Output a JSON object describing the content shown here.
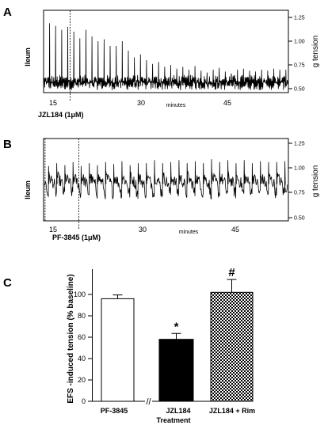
{
  "panels": {
    "A": {
      "letter": "A",
      "ylabel": "Ileum",
      "right_label": "g tension",
      "y_ticks": [
        "1.25",
        "1.00",
        "0.75",
        "0.50"
      ],
      "x_ticks": [
        "15",
        "30",
        "45"
      ],
      "x_label": "minutes",
      "drug_label": "JZL184 (1μM)"
    },
    "B": {
      "letter": "B",
      "ylabel": "Ileum",
      "right_label": "g tension",
      "y_ticks": [
        "1.25",
        "1.00",
        "0.75",
        "0.50"
      ],
      "x_ticks": [
        "15",
        "30",
        "45"
      ],
      "x_label": "minutes",
      "drug_label": "PF-3845 (1μM)"
    }
  },
  "chart_data": [
    {
      "type": "line",
      "panel": "A",
      "xlabel": "minutes",
      "ylabel": "g tension",
      "x_ticks": [
        15,
        30,
        45
      ],
      "y_ticks": [
        0.5,
        0.75,
        1.0,
        1.25
      ],
      "xlim": [
        8,
        57
      ],
      "ylim": [
        0.44,
        1.3
      ],
      "baseline": 0.56,
      "event": {
        "label": "JZL184 (1μM)",
        "x": 18
      },
      "peaks_before": [
        1.19,
        1.16,
        1.12,
        1.15,
        1.1,
        1.03,
        1.12,
        1.05,
        1.0,
        1.02,
        0.95
      ],
      "peaks_after": [
        0.95,
        1.0,
        0.9,
        0.83,
        0.86,
        0.8,
        0.76,
        0.78,
        0.73,
        0.75,
        0.71,
        0.73,
        0.7,
        0.74,
        0.69,
        0.67,
        0.7,
        0.72,
        0.68,
        0.66,
        0.7,
        0.71,
        0.69,
        0.68,
        0.7,
        0.69,
        0.71,
        0.7,
        0.7
      ]
    },
    {
      "type": "line",
      "panel": "B",
      "xlabel": "minutes",
      "ylabel": "g tension",
      "x_ticks": [
        15,
        30,
        45
      ],
      "y_ticks": [
        0.5,
        0.75,
        1.0,
        1.25
      ],
      "xlim": [
        8,
        57
      ],
      "ylim": [
        0.5,
        1.3
      ],
      "baseline": 0.8,
      "event": {
        "label": "PF-3845 (1μM)",
        "x": 19.5
      },
      "start_marker_x": 8.3,
      "peaks": [
        1.02,
        1.05,
        1.03,
        1.06,
        1.02,
        1.05,
        1.03,
        1.06,
        1.04,
        1.07,
        1.03,
        1.05,
        1.05,
        1.08,
        1.05,
        1.06,
        1.08,
        1.05,
        1.07,
        1.05,
        1.09,
        1.06,
        1.08,
        1.05,
        1.08,
        1.05,
        1.07,
        1.06,
        1.06,
        1.07
      ]
    },
    {
      "type": "bar",
      "panel": "C",
      "title": "",
      "xlabel": "Treatment",
      "ylabel": "EFS -induced tension (% baseline)",
      "categories": [
        "PF-3845",
        "JZL184",
        "JZL184 + Rim"
      ],
      "values": [
        96,
        58,
        102
      ],
      "errors": [
        3.5,
        5.5,
        12
      ],
      "fills": [
        "white",
        "black",
        "checker"
      ],
      "annotations": [
        "",
        "*",
        "#"
      ],
      "y_ticks": [
        0,
        20,
        40,
        60,
        80,
        100
      ],
      "ylim": [
        0,
        115
      ],
      "axis_break": "//"
    }
  ],
  "panel_c": {
    "letter": "C",
    "ylabel": "EFS -induced tension (% baseline)",
    "xlabel": "Treatment",
    "y_ticks": [
      "0",
      "20",
      "40",
      "60",
      "80",
      "100"
    ],
    "categories": [
      "PF-3845",
      "JZL184",
      "JZL184 + Rim"
    ],
    "annotations": [
      "*",
      "#"
    ],
    "axis_break": "//"
  }
}
